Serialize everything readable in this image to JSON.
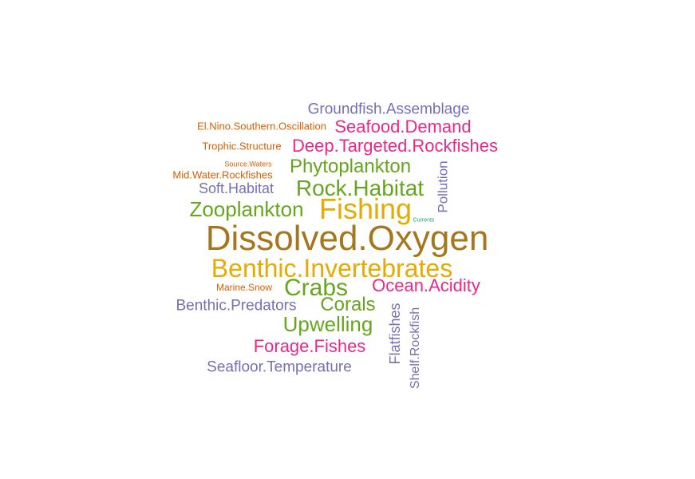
{
  "chart_data": {
    "type": "wordcloud",
    "words": [
      {
        "text": "Dissolved.Oxygen",
        "group": "g2"
      },
      {
        "text": "Fishing",
        "group": "g1"
      },
      {
        "text": "Benthic.Invertebrates",
        "group": "g1"
      },
      {
        "text": "Rock.Habitat",
        "group": "g3"
      },
      {
        "text": "Deep.Targeted.Rockfishes",
        "group": "g4"
      },
      {
        "text": "Phytoplankton",
        "group": "g3"
      },
      {
        "text": "Zooplankton",
        "group": "g3"
      },
      {
        "text": "Crabs",
        "group": "g3"
      },
      {
        "text": "Seafood.Demand",
        "group": "g4"
      },
      {
        "text": "Ocean.Acidity",
        "group": "g4"
      },
      {
        "text": "Corals",
        "group": "g3"
      },
      {
        "text": "Upwelling",
        "group": "g3"
      },
      {
        "text": "Forage.Fishes",
        "group": "g4"
      },
      {
        "text": "Groundfish.Assemblage",
        "group": "g5"
      },
      {
        "text": "Seafloor.Temperature",
        "group": "g5"
      },
      {
        "text": "Benthic.Predators",
        "group": "g5"
      },
      {
        "text": "Soft.Habitat",
        "group": "g5"
      },
      {
        "text": "Pollution",
        "group": "g5"
      },
      {
        "text": "Flatfishes",
        "group": "g5"
      },
      {
        "text": "Shelf.Rockfish",
        "group": "g5"
      },
      {
        "text": "El.Nino.Southern.Oscillation",
        "group": "g6"
      },
      {
        "text": "Trophic.Structure",
        "group": "g6"
      },
      {
        "text": "Mid.Water.Rockfishes",
        "group": "g6"
      },
      {
        "text": "Marine.Snow",
        "group": "g6"
      },
      {
        "text": "Source.Waters",
        "group": "g6"
      },
      {
        "text": "Currents",
        "group": "g7"
      }
    ],
    "colors": {
      "g1": "#E6AB02",
      "g2": "#A6761D",
      "g3": "#66A61E",
      "g4": "#E7298A",
      "g5": "#7570B3",
      "g6": "#D95F02",
      "g7": "#1B9E77"
    }
  }
}
